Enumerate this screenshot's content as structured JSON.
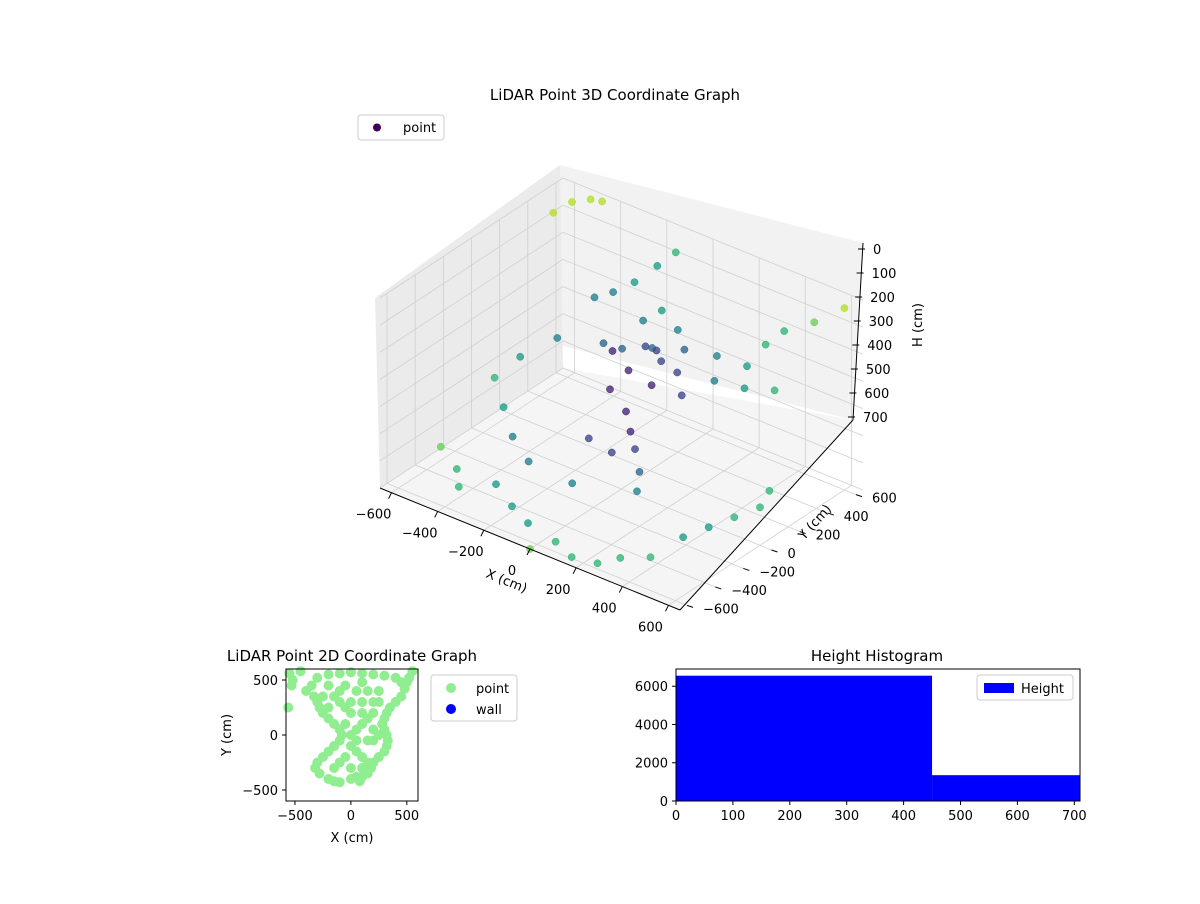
{
  "colors": {
    "point_2d": "#90ee90",
    "wall": "#0000ff",
    "hist": "#0000ff",
    "legend_3d_marker": "#440154",
    "axes_pane": "#f2f2f2",
    "grid": "#d0d0d0"
  },
  "chart_data": [
    {
      "type": "scatter3d",
      "title": "LiDAR Point 3D Coordinate Graph",
      "xlabel": "X (cm)",
      "ylabel": "Y (cm)",
      "zlabel": "H (cm)",
      "xlim": [
        -650,
        650
      ],
      "ylim": [
        -650,
        650
      ],
      "zlim": [
        700,
        0
      ],
      "x_ticks": [
        -600,
        -400,
        -200,
        0,
        200,
        400,
        600
      ],
      "y_ticks": [
        -600,
        -400,
        -200,
        0,
        200,
        400,
        600
      ],
      "z_ticks": [
        0,
        100,
        200,
        300,
        400,
        500,
        600,
        700
      ],
      "x_tick_labels": [
        "−600",
        "−400",
        "−200",
        "0",
        "200",
        "400",
        "600"
      ],
      "y_tick_labels": [
        "−600",
        "−400",
        "−200",
        "0",
        "200",
        "400",
        "600"
      ],
      "z_tick_labels": [
        "0",
        "100",
        "200",
        "300",
        "400",
        "500",
        "600",
        "700"
      ],
      "grid": true,
      "colormap": "viridis",
      "legend": {
        "entries": [
          "point"
        ],
        "placement": "upper-left"
      },
      "series": [
        {
          "name": "point",
          "points": [
            [
              -150,
              250,
              320
            ],
            [
              -50,
              300,
              300
            ],
            [
              50,
              200,
              280
            ],
            [
              150,
              150,
              270
            ],
            [
              250,
              250,
              300
            ],
            [
              350,
              300,
              310
            ],
            [
              -100,
              100,
              260
            ],
            [
              0,
              50,
              280
            ],
            [
              100,
              50,
              300
            ],
            [
              200,
              100,
              320
            ],
            [
              -50,
              0,
              350
            ],
            [
              50,
              -50,
              380
            ],
            [
              100,
              -100,
              420
            ],
            [
              150,
              -150,
              450
            ],
            [
              80,
              -200,
              470
            ],
            [
              -120,
              350,
              240
            ],
            [
              -200,
              200,
              300
            ],
            [
              300,
              400,
              280
            ],
            [
              450,
              350,
              300
            ],
            [
              200,
              350,
              260
            ],
            [
              0,
              400,
              250
            ],
            [
              -100,
              450,
              230
            ],
            [
              120,
              250,
              230
            ],
            [
              60,
              150,
              220
            ],
            [
              -30,
              220,
              260
            ],
            [
              -250,
              350,
              180
            ],
            [
              -300,
              300,
              200
            ],
            [
              -200,
              420,
              150
            ],
            [
              -150,
              500,
              100
            ],
            [
              -100,
              550,
              50
            ],
            [
              -400,
              200,
              350
            ],
            [
              -500,
              100,
              420
            ],
            [
              -550,
              0,
              480
            ],
            [
              -450,
              -100,
              520
            ],
            [
              -350,
              -200,
              560
            ],
            [
              -600,
              -300,
              650
            ],
            [
              -500,
              -350,
              680
            ],
            [
              -300,
              -400,
              650
            ],
            [
              -200,
              -450,
              680
            ],
            [
              -100,
              -500,
              690
            ],
            [
              50,
              -550,
              690
            ],
            [
              150,
              -600,
              695
            ],
            [
              250,
              -580,
              690
            ],
            [
              300,
              -500,
              680
            ],
            [
              400,
              -450,
              660
            ],
            [
              450,
              -300,
              620
            ],
            [
              500,
              -200,
              600
            ],
            [
              550,
              -100,
              580
            ],
            [
              600,
              0,
              560
            ],
            [
              580,
              100,
              540
            ],
            [
              -600,
              500,
              60
            ],
            [
              -550,
              550,
              20
            ],
            [
              -500,
              600,
              10
            ],
            [
              -450,
              600,
              0
            ],
            [
              600,
              600,
              30
            ],
            [
              500,
              550,
              100
            ],
            [
              400,
              500,
              150
            ],
            [
              350,
              450,
              200
            ],
            [
              250,
              -300,
              520
            ],
            [
              0,
              -350,
              560
            ],
            [
              -250,
              -250,
              600
            ],
            [
              -400,
              -500,
              660
            ],
            [
              0,
              -650,
              700
            ],
            [
              200,
              -200,
              500
            ],
            [
              -50,
              -150,
              480
            ]
          ]
        }
      ]
    },
    {
      "type": "scatter",
      "title": "LiDAR Point 2D Coordinate Graph",
      "xlabel": "X (cm)",
      "ylabel": "Y (cm)",
      "xlim": [
        -580,
        600
      ],
      "ylim": [
        -600,
        600
      ],
      "x_ticks": [
        -500,
        0,
        500
      ],
      "y_ticks": [
        -500,
        0,
        500
      ],
      "x_tick_labels": [
        "−500",
        "0",
        "500"
      ],
      "y_tick_labels": [
        "−500",
        "0",
        "500"
      ],
      "legend": {
        "entries": [
          "point",
          "wall"
        ],
        "placement": "outside-right"
      },
      "series": [
        {
          "name": "point",
          "points": [
            [
              -200,
              550
            ],
            [
              -100,
              560
            ],
            [
              0,
              570
            ],
            [
              100,
              560
            ],
            [
              200,
              550
            ],
            [
              300,
              540
            ],
            [
              400,
              520
            ],
            [
              450,
              480
            ],
            [
              -300,
              520
            ],
            [
              -350,
              450
            ],
            [
              -400,
              400
            ],
            [
              -330,
              350
            ],
            [
              -300,
              300
            ],
            [
              -280,
              250
            ],
            [
              -250,
              200
            ],
            [
              -200,
              150
            ],
            [
              -150,
              100
            ],
            [
              -100,
              50
            ],
            [
              -80,
              0
            ],
            [
              -100,
              -50
            ],
            [
              -150,
              -100
            ],
            [
              -200,
              -150
            ],
            [
              -250,
              -200
            ],
            [
              -300,
              -250
            ],
            [
              -320,
              -300
            ],
            [
              -280,
              -350
            ],
            [
              -200,
              -400
            ],
            [
              -150,
              -420
            ],
            [
              -100,
              -430
            ],
            [
              0,
              -400
            ],
            [
              50,
              -380
            ],
            [
              80,
              -420
            ],
            [
              100,
              -380
            ],
            [
              150,
              -350
            ],
            [
              180,
              -300
            ],
            [
              200,
              -250
            ],
            [
              250,
              -200
            ],
            [
              300,
              -150
            ],
            [
              320,
              -100
            ],
            [
              330,
              -50
            ],
            [
              320,
              0
            ],
            [
              300,
              50
            ],
            [
              280,
              100
            ],
            [
              300,
              150
            ],
            [
              320,
              200
            ],
            [
              350,
              250
            ],
            [
              400,
              300
            ],
            [
              450,
              350
            ],
            [
              480,
              420
            ],
            [
              500,
              480
            ],
            [
              0,
              0
            ],
            [
              50,
              50
            ],
            [
              100,
              100
            ],
            [
              150,
              150
            ],
            [
              0,
              200
            ],
            [
              -50,
              250
            ],
            [
              -100,
              300
            ],
            [
              -150,
              350
            ],
            [
              0,
              300
            ],
            [
              100,
              300
            ],
            [
              200,
              300
            ],
            [
              50,
              400
            ],
            [
              150,
              400
            ],
            [
              250,
              400
            ],
            [
              -50,
              450
            ],
            [
              100,
              480
            ],
            [
              -100,
              400
            ],
            [
              -200,
              450
            ],
            [
              -250,
              350
            ],
            [
              -200,
              250
            ],
            [
              0,
              -100
            ],
            [
              50,
              -150
            ],
            [
              100,
              -200
            ],
            [
              150,
              -250
            ],
            [
              -50,
              -200
            ],
            [
              -100,
              -250
            ],
            [
              0,
              -300
            ],
            [
              100,
              -300
            ],
            [
              -150,
              -300
            ],
            [
              50,
              -50
            ],
            [
              200,
              -50
            ],
            [
              250,
              0
            ],
            [
              200,
              50
            ],
            [
              150,
              -50
            ],
            [
              -50,
              100
            ],
            [
              100,
              200
            ],
            [
              200,
              200
            ],
            [
              250,
              300
            ],
            [
              -550,
              560
            ],
            [
              -520,
              500
            ],
            [
              -530,
              450
            ],
            [
              -560,
              250
            ],
            [
              -450,
              580
            ],
            [
              550,
              580
            ],
            [
              520,
              520
            ]
          ]
        },
        {
          "name": "wall",
          "points": []
        }
      ]
    },
    {
      "type": "bar",
      "title": "Height Histogram",
      "xlim": [
        0,
        710
      ],
      "ylim": [
        0,
        6900
      ],
      "x_ticks": [
        0,
        100,
        200,
        300,
        400,
        500,
        600,
        700
      ],
      "y_ticks": [
        0,
        2000,
        4000,
        6000
      ],
      "x_tick_labels": [
        "0",
        "100",
        "200",
        "300",
        "400",
        "500",
        "600",
        "700"
      ],
      "y_tick_labels": [
        "0",
        "2000",
        "4000",
        "6000"
      ],
      "legend": {
        "entries": [
          "Height"
        ],
        "placement": "upper-right"
      },
      "bins": [
        {
          "start": 0,
          "end": 450,
          "count": 6550
        },
        {
          "start": 450,
          "end": 710,
          "count": 1350
        }
      ]
    }
  ]
}
